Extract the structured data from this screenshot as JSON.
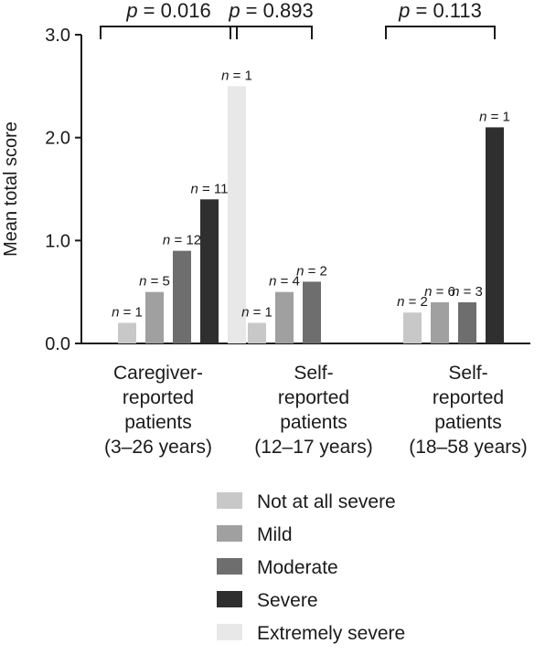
{
  "chart_data": {
    "type": "bar",
    "ylabel": "Mean total score",
    "ylim": [
      0,
      3.0
    ],
    "yticks": [
      0.0,
      1.0,
      2.0,
      3.0
    ],
    "ytick_labels": [
      "0.0",
      "1.0",
      "2.0",
      "3.0"
    ],
    "grid": false,
    "legend_position": "bottom-center",
    "n_prefix": "n",
    "p_prefix": "p",
    "series": [
      {
        "name": "Not at all severe",
        "color": "#c8c8c8"
      },
      {
        "name": "Mild",
        "color": "#a0a0a0"
      },
      {
        "name": "Moderate",
        "color": "#6e6e6e"
      },
      {
        "name": "Severe",
        "color": "#2f2f2f"
      },
      {
        "name": "Extremely severe",
        "color": "#e8e8e8"
      }
    ],
    "groups": [
      {
        "label_lines": [
          "Caregiver-",
          "reported",
          "patients",
          "(3–26 years)"
        ],
        "p_value": "= 0.016",
        "bars": [
          {
            "series": 0,
            "value": 0.2,
            "n": "= 1"
          },
          {
            "series": 1,
            "value": 0.5,
            "n": "= 5"
          },
          {
            "series": 2,
            "value": 0.9,
            "n": "= 12"
          },
          {
            "series": 3,
            "value": 1.4,
            "n": "= 11"
          },
          {
            "series": 4,
            "value": 2.5,
            "n": "= 1"
          }
        ]
      },
      {
        "label_lines": [
          "Self-",
          "reported",
          "patients",
          "(12–17 years)"
        ],
        "p_value": "= 0.893",
        "bars": [
          {
            "series": 0,
            "value": 0.2,
            "n": "= 1"
          },
          {
            "series": 1,
            "value": 0.5,
            "n": "= 4"
          },
          {
            "series": 2,
            "value": 0.6,
            "n": "= 2"
          }
        ]
      },
      {
        "label_lines": [
          "Self-",
          "reported",
          "patients",
          "(18–58 years)"
        ],
        "p_value": "= 0.113",
        "bars": [
          {
            "series": 0,
            "value": 0.3,
            "n": "= 2"
          },
          {
            "series": 1,
            "value": 0.4,
            "n": "= 6"
          },
          {
            "series": 2,
            "value": 0.4,
            "n": "= 3"
          },
          {
            "series": 3,
            "value": 2.1,
            "n": "= 1"
          }
        ]
      }
    ]
  }
}
